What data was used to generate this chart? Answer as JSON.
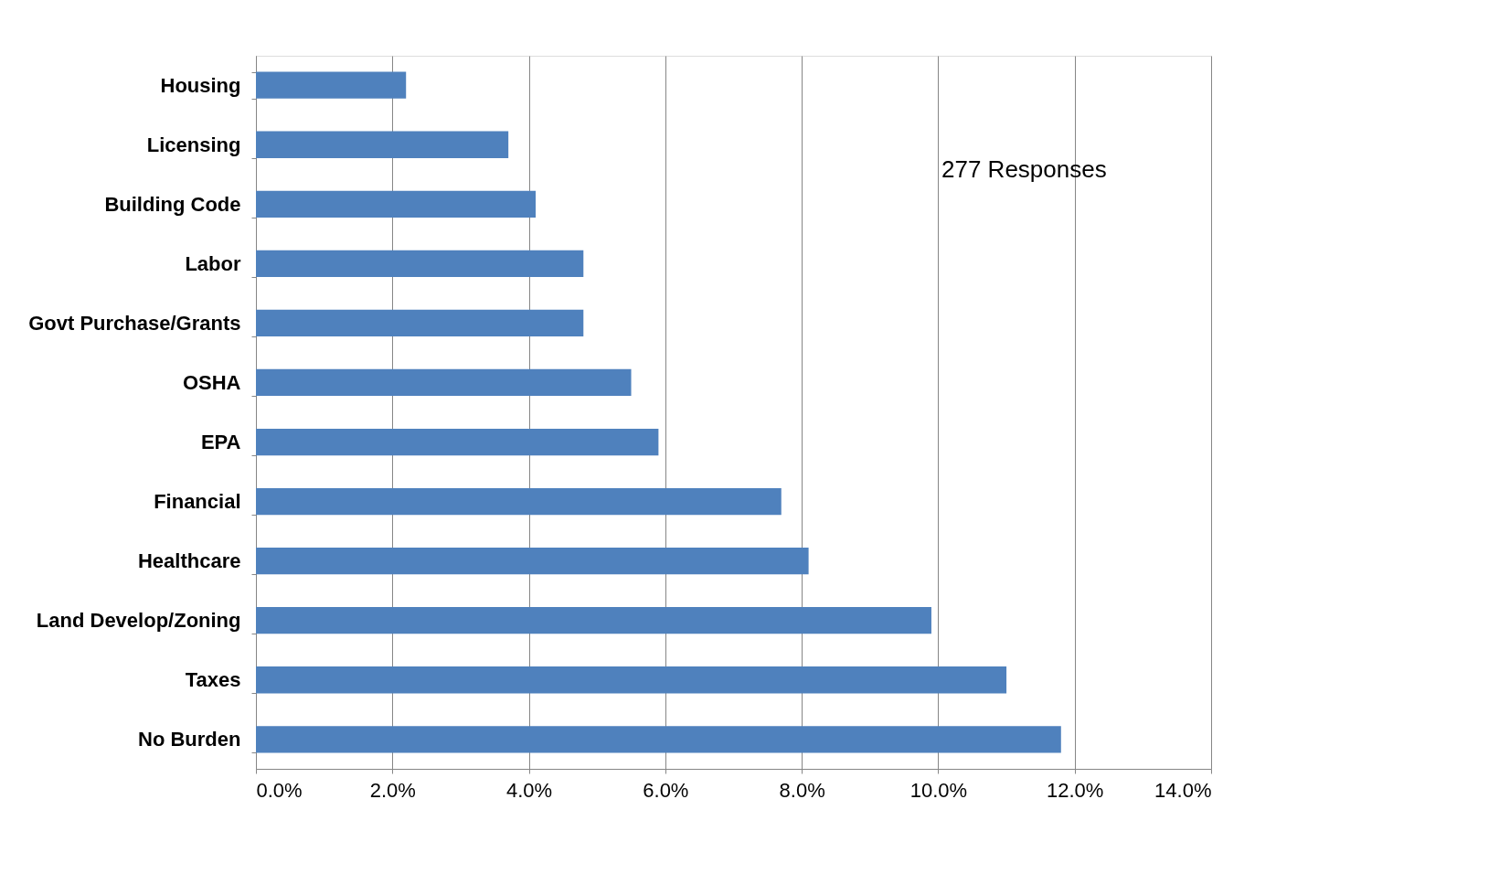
{
  "chart_data": {
    "type": "bar",
    "orientation": "horizontal",
    "color": "#4f81bd",
    "categories": [
      "Housing",
      "Licensing",
      "Building Code",
      "Labor",
      "Govt Purchase/Grants",
      "OSHA",
      "EPA",
      "Financial",
      "Healthcare",
      "Land Develop/Zoning",
      "Taxes",
      "No Burden"
    ],
    "values": [
      2.2,
      3.7,
      4.1,
      4.8,
      4.8,
      5.5,
      5.9,
      7.7,
      8.1,
      9.9,
      11.0,
      11.8
    ],
    "xlim": [
      0,
      14
    ],
    "xticks": [
      {
        "value": 0,
        "label": "0.0%"
      },
      {
        "value": 2,
        "label": "2.0%"
      },
      {
        "value": 4,
        "label": "4.0%"
      },
      {
        "value": 6,
        "label": "6.0%"
      },
      {
        "value": 8,
        "label": "8.0%"
      },
      {
        "value": 10,
        "label": "10.0%"
      },
      {
        "value": 12,
        "label": "12.0%"
      },
      {
        "value": 14,
        "label": "14.0%"
      }
    ],
    "grid": "x",
    "annotations": [
      "277 Responses"
    ]
  }
}
